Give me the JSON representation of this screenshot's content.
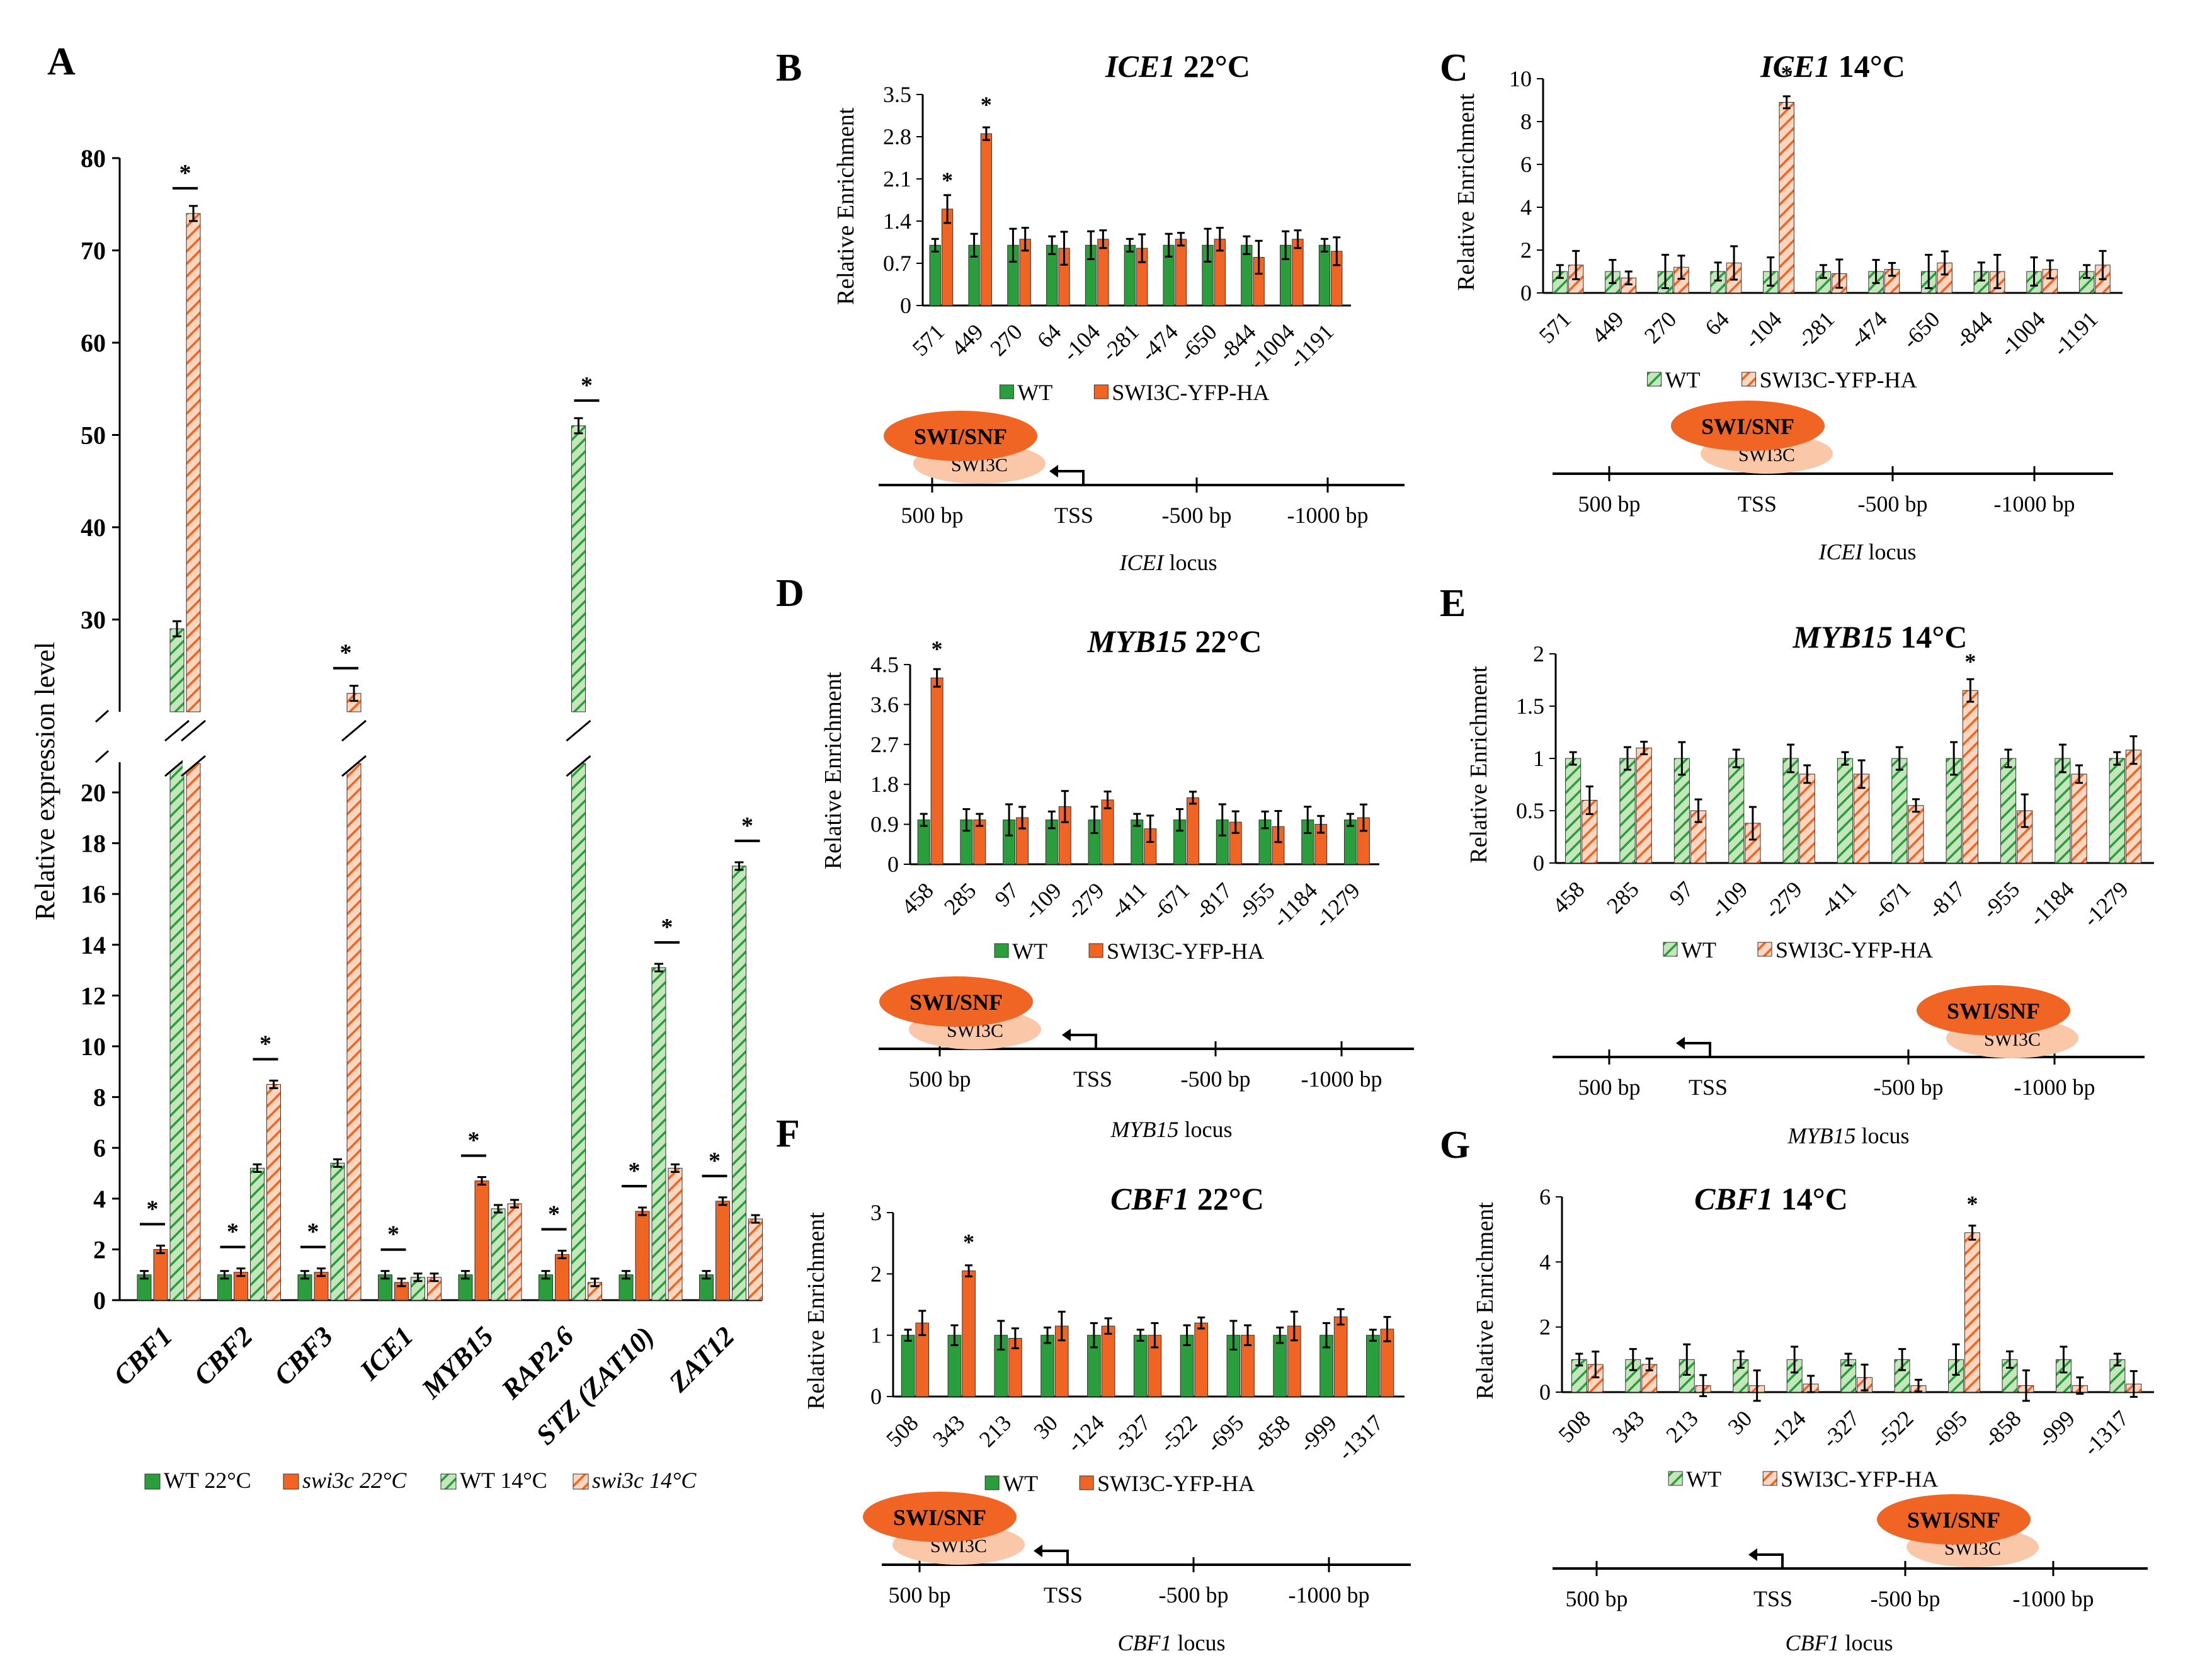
{
  "colors": {
    "wt": "#2a9d3c",
    "mut": "#f06424",
    "wtHatch": "#bfe3b6",
    "mutHatch": "#fbd0b8",
    "axis": "#000000",
    "swisnf": "#f06424",
    "swi3c": "#fbc7a9"
  },
  "chart_data": [
    {
      "panel": "A",
      "type": "bar",
      "title": "",
      "ylabel": "Relative expression level",
      "ylim": [
        0,
        80
      ],
      "yticks_lower": [
        "0",
        "2",
        "4",
        "6",
        "8",
        "10",
        "12",
        "14",
        "16",
        "18",
        "20"
      ],
      "yticks_upper": [
        "30",
        "40",
        "50",
        "60",
        "70",
        "80"
      ],
      "categories": [
        "CBF1",
        "CBF2",
        "CBF3",
        "ICE1",
        "MYB15",
        "RAP2.6",
        "STZ (ZAT10)",
        "ZAT12"
      ],
      "series": [
        {
          "name": "WT 22°C",
          "values": [
            1,
            1,
            1,
            1,
            1,
            1,
            1,
            1
          ]
        },
        {
          "name": "swi3c 22°C",
          "values": [
            2.0,
            1.1,
            1.1,
            0.7,
            4.7,
            1.8,
            3.5,
            3.9
          ]
        },
        {
          "name": "WT 14°C",
          "values": [
            29,
            5.2,
            5.4,
            0.9,
            3.6,
            51,
            13.1,
            17.1
          ]
        },
        {
          "name": "swi3c 14°C",
          "values": [
            74,
            8.5,
            22,
            0.9,
            3.8,
            0.7,
            5.2,
            3.2
          ]
        }
      ],
      "legend": [
        "WT 22°C",
        "swi3c 22°C",
        "WT 14°C",
        "swi3c 14°C"
      ]
    },
    {
      "panel": "B",
      "type": "bar",
      "title": "ICE1 22°C",
      "ylabel": "Relative Enrichment",
      "ylim": [
        0,
        3.5
      ],
      "yticks": [
        "0",
        "0.7",
        "1.4",
        "2.1",
        "2.8",
        "3.5"
      ],
      "categories": [
        "571",
        "449",
        "270",
        "64",
        "-104",
        "-281",
        "-474",
        "-650",
        "-844",
        "-1004",
        "-1191"
      ],
      "series": [
        {
          "name": "WT",
          "values": [
            1,
            1,
            1,
            1,
            1,
            1,
            1,
            1,
            1,
            1,
            1
          ]
        },
        {
          "name": "SWI3C-YFP-HA",
          "values": [
            1.6,
            2.85,
            1.1,
            0.95,
            1.1,
            0.95,
            1.1,
            1.1,
            0.8,
            1.1,
            0.9
          ]
        }
      ],
      "legend": [
        "WT",
        "SWI3C-YFP-HA"
      ],
      "locus": {
        "label": "ICEI locus",
        "ticks": [
          "500 bp",
          "TSS",
          "-500 bp",
          "-1000 bp"
        ]
      }
    },
    {
      "panel": "C",
      "type": "bar",
      "title": "ICE1 14°C",
      "ylabel": "Relative Enrichment",
      "ylim": [
        0,
        10
      ],
      "yticks": [
        "0",
        "2",
        "4",
        "6",
        "8",
        "10"
      ],
      "categories": [
        "571",
        "449",
        "270",
        "64",
        "-104",
        "-281",
        "-474",
        "-650",
        "-844",
        "-1004",
        "-1191"
      ],
      "series": [
        {
          "name": "WT",
          "values": [
            1,
            1,
            1,
            1,
            1,
            1,
            1,
            1,
            1,
            1,
            1
          ]
        },
        {
          "name": "SWI3C-YFP-HA",
          "values": [
            1.3,
            0.7,
            1.2,
            1.4,
            8.9,
            0.9,
            1.1,
            1.4,
            1.0,
            1.1,
            1.3
          ]
        }
      ],
      "legend": [
        "WT",
        "SWI3C-YFP-HA"
      ],
      "locus": {
        "label": "ICEI locus",
        "ticks": [
          "500 bp",
          "TSS",
          "-500 bp",
          "-1000 bp"
        ]
      }
    },
    {
      "panel": "D",
      "type": "bar",
      "title": "MYB15 22°C",
      "ylabel": "Relative Enrichment",
      "ylim": [
        0,
        4.5
      ],
      "yticks": [
        "0",
        "0.9",
        "1.8",
        "2.7",
        "3.6",
        "4.5"
      ],
      "categories": [
        "458",
        "285",
        "97",
        "-109",
        "-279",
        "-411",
        "-671",
        "-817",
        "-955",
        "-1184",
        "-1279"
      ],
      "series": [
        {
          "name": "WT",
          "values": [
            1,
            1,
            1,
            1,
            1,
            1,
            1,
            1,
            1,
            1,
            1
          ]
        },
        {
          "name": "SWI3C-YFP-HA",
          "values": [
            4.2,
            1.0,
            1.05,
            1.3,
            1.45,
            0.8,
            1.5,
            0.95,
            0.85,
            0.9,
            1.05
          ]
        }
      ],
      "legend": [
        "WT",
        "SWI3C-YFP-HA"
      ],
      "locus": {
        "label": "MYB15 locus",
        "ticks": [
          "500 bp",
          "TSS",
          "-500 bp",
          "-1000 bp"
        ]
      }
    },
    {
      "panel": "E",
      "type": "bar",
      "title": "MYB15 14°C",
      "ylabel": "Relative Enrichment",
      "ylim": [
        0,
        2
      ],
      "yticks": [
        "0",
        "0.5",
        "1",
        "1.5",
        "2"
      ],
      "categories": [
        "458",
        "285",
        "97",
        "-109",
        "-279",
        "-411",
        "-671",
        "-817",
        "-955",
        "-1184",
        "-1279"
      ],
      "series": [
        {
          "name": "WT",
          "values": [
            1,
            1,
            1,
            1,
            1,
            1,
            1,
            1,
            1,
            1,
            1
          ]
        },
        {
          "name": "SWI3C-YFP-HA",
          "values": [
            0.6,
            1.1,
            0.5,
            0.38,
            0.85,
            0.85,
            0.55,
            1.65,
            0.5,
            0.85,
            1.08
          ]
        }
      ],
      "legend": [
        "WT",
        "SWI3C-YFP-HA"
      ],
      "locus": {
        "label": "MYB15 locus",
        "ticks": [
          "500 bp",
          "TSS",
          "-500 bp",
          "-1000 bp"
        ]
      }
    },
    {
      "panel": "F",
      "type": "bar",
      "title": "CBF1 22°C",
      "ylabel": "Relative Enrichment",
      "ylim": [
        0,
        3
      ],
      "yticks": [
        "0",
        "1",
        "2",
        "3"
      ],
      "categories": [
        "508",
        "343",
        "213",
        "30",
        "-124",
        "-327",
        "-522",
        "-695",
        "-858",
        "-999",
        "-1317"
      ],
      "series": [
        {
          "name": "WT",
          "values": [
            1,
            1,
            1,
            1,
            1,
            1,
            1,
            1,
            1,
            1,
            1
          ]
        },
        {
          "name": "SWI3C-YFP-HA",
          "values": [
            1.2,
            2.05,
            0.95,
            1.15,
            1.15,
            1.0,
            1.2,
            1.0,
            1.15,
            1.3,
            1.1
          ]
        }
      ],
      "legend": [
        "WT",
        "SWI3C-YFP-HA"
      ],
      "locus": {
        "label": "CBF1 locus",
        "ticks": [
          "500 bp",
          "TSS",
          "-500 bp",
          "-1000 bp"
        ]
      }
    },
    {
      "panel": "G",
      "type": "bar",
      "title": "CBF1 14°C",
      "ylabel": "Relative Enrichment",
      "ylim": [
        0,
        6
      ],
      "yticks": [
        "0",
        "2",
        "4",
        "6"
      ],
      "categories": [
        "508",
        "343",
        "213",
        "30",
        "-124",
        "-327",
        "-522",
        "-695",
        "-858",
        "-999",
        "-1317"
      ],
      "series": [
        {
          "name": "WT",
          "values": [
            1,
            1,
            1,
            1,
            1,
            1,
            1,
            1,
            1,
            1,
            1
          ]
        },
        {
          "name": "SWI3C-YFP-HA",
          "values": [
            0.85,
            0.85,
            0.2,
            0.2,
            0.25,
            0.45,
            0.2,
            4.9,
            0.2,
            0.2,
            0.25
          ]
        }
      ],
      "legend": [
        "WT",
        "SWI3C-YFP-HA"
      ],
      "locus": {
        "label": "CBF1 locus",
        "ticks": [
          "500 bp",
          "TSS",
          "-500 bp",
          "-1000 bp"
        ]
      }
    }
  ],
  "labels": {
    "swisnf": "SWI/SNF",
    "swi3c": "SWI3C",
    "star": "*"
  }
}
